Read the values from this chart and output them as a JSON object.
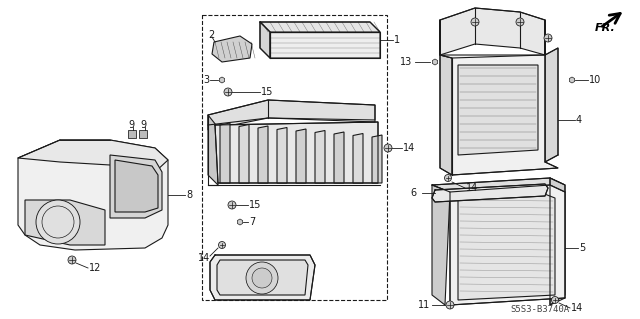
{
  "bg_color": "#ffffff",
  "diagram_code": "S5S3-B3740A",
  "fr_label": "FR.",
  "line_color": "#1a1a1a",
  "lw": 0.8
}
